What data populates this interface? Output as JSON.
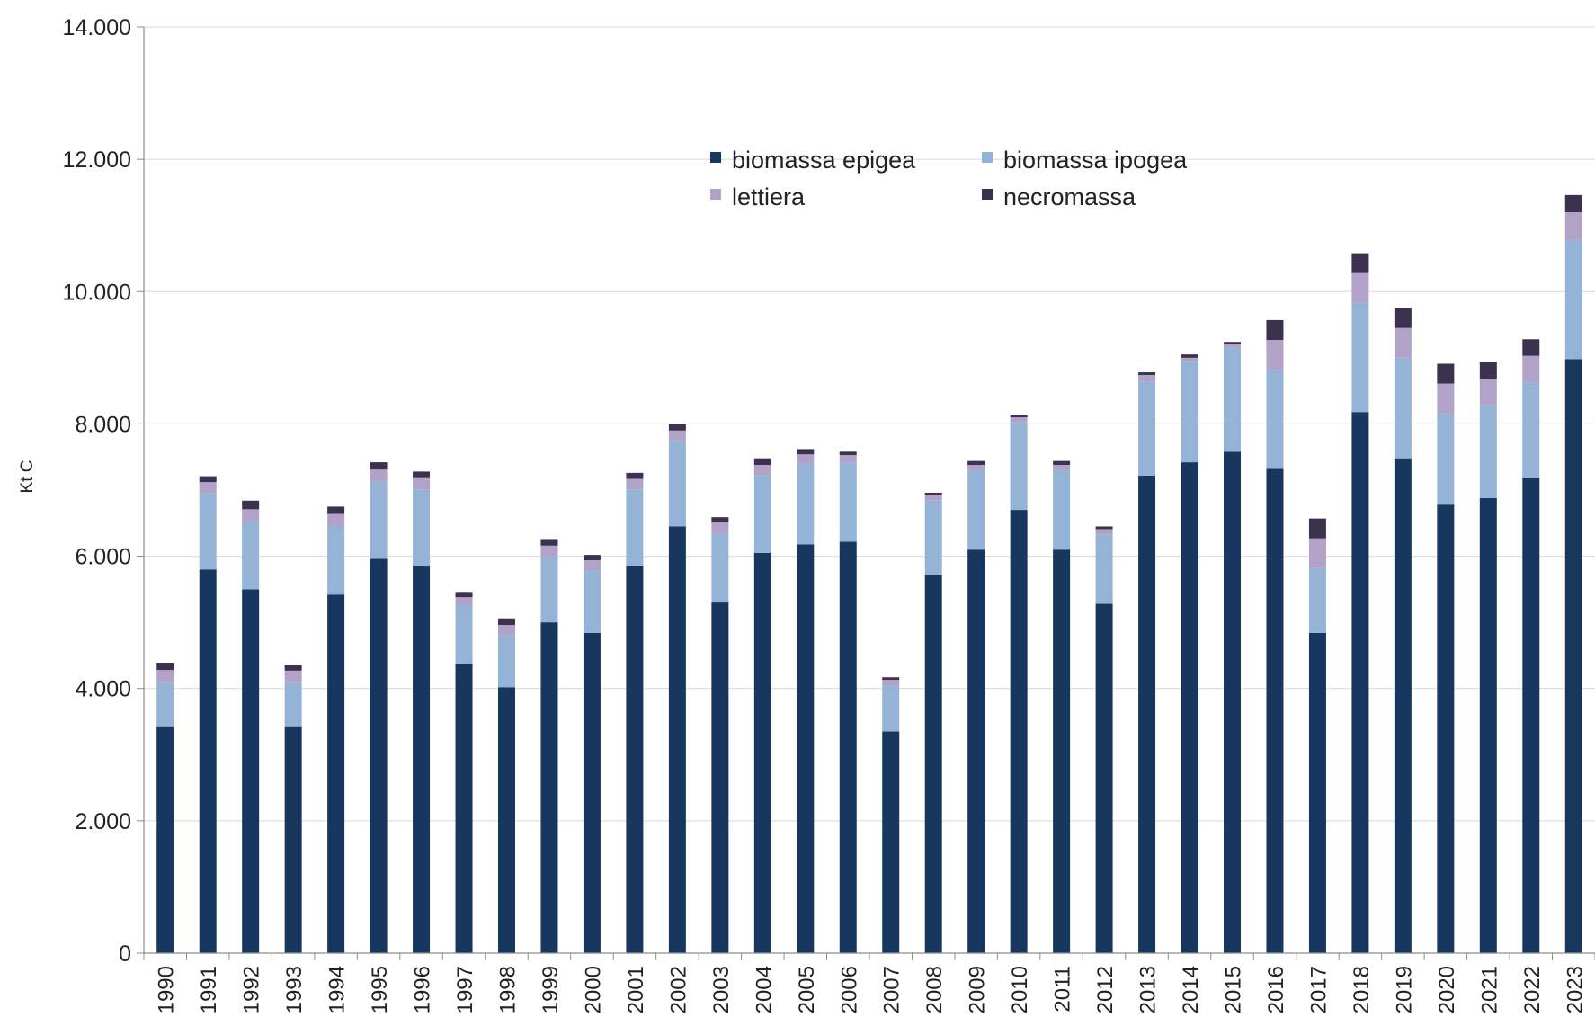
{
  "chart_data": {
    "type": "bar",
    "stacked": true,
    "title": "",
    "xlabel": "",
    "ylabel": "Kt C",
    "ylim": [
      0,
      14000
    ],
    "yticks": [
      0,
      2000,
      4000,
      6000,
      8000,
      10000,
      12000,
      14000
    ],
    "ytick_labels": [
      "0",
      "2.000",
      "4.000",
      "6.000",
      "8.000",
      "10.000",
      "12.000",
      "14.000"
    ],
    "grid": true,
    "legend_position": "top-center",
    "categories": [
      "1990",
      "1991",
      "1992",
      "1993",
      "1994",
      "1995",
      "1996",
      "1997",
      "1998",
      "1999",
      "2000",
      "2001",
      "2002",
      "2003",
      "2004",
      "2005",
      "2006",
      "2007",
      "2008",
      "2009",
      "2010",
      "2011",
      "2012",
      "2013",
      "2014",
      "2015",
      "2016",
      "2017",
      "2018",
      "2019",
      "2020",
      "2021",
      "2022",
      "2023"
    ],
    "series": [
      {
        "name": "biomassa epigea",
        "color": "#17375e",
        "values": [
          3430,
          5800,
          5500,
          3430,
          5420,
          5960,
          5860,
          4380,
          4020,
          5000,
          4840,
          5860,
          6450,
          5300,
          6050,
          6180,
          6220,
          3350,
          5720,
          6100,
          6700,
          6100,
          5280,
          7220,
          7420,
          7580,
          7320,
          4840,
          8180,
          7480,
          6780,
          6880,
          7180,
          8980
        ]
      },
      {
        "name": "biomassa ipogea",
        "color": "#95b3d7",
        "values": [
          670,
          1150,
          1030,
          670,
          1030,
          1170,
          1150,
          880,
          780,
          1000,
          950,
          1150,
          1300,
          1040,
          1180,
          1220,
          1200,
          700,
          1120,
          1200,
          1330,
          1200,
          1050,
          1420,
          1520,
          1580,
          1500,
          980,
          1650,
          1520,
          1380,
          1400,
          1450,
          1800
        ]
      },
      {
        "name": "lettiera",
        "color": "#b2a2c7",
        "values": [
          180,
          170,
          180,
          170,
          190,
          180,
          170,
          120,
          160,
          160,
          150,
          160,
          150,
          170,
          150,
          140,
          110,
          80,
          80,
          80,
          70,
          80,
          80,
          100,
          60,
          50,
          450,
          450,
          450,
          450,
          450,
          400,
          400,
          420
        ]
      },
      {
        "name": "necromassa",
        "color": "#3d3150",
        "values": [
          110,
          90,
          130,
          90,
          110,
          110,
          100,
          80,
          100,
          100,
          80,
          90,
          100,
          80,
          100,
          80,
          50,
          40,
          40,
          60,
          40,
          60,
          40,
          40,
          50,
          30,
          300,
          300,
          300,
          300,
          300,
          250,
          250,
          260
        ]
      }
    ]
  }
}
